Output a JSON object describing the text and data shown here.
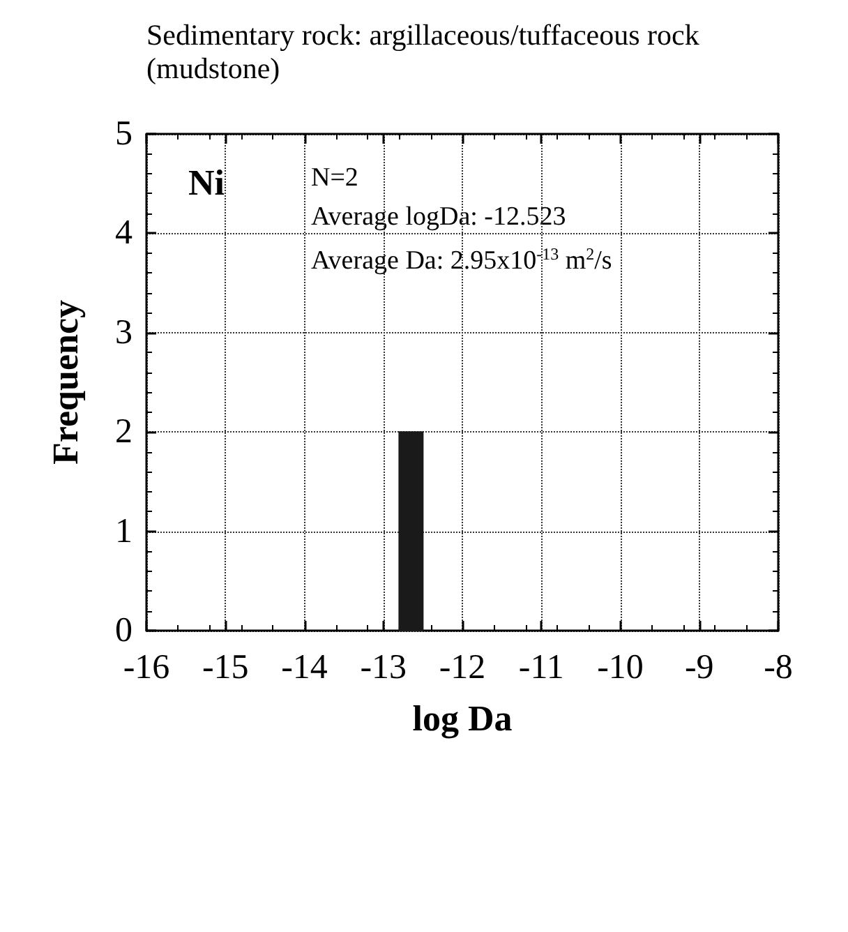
{
  "chart_data": {
    "type": "histogram",
    "title": "Sedimentary rock: argillaceous/tuffaceous rock (mudstone)",
    "xlabel": "log Da",
    "ylabel": "Frequency",
    "bins": [
      -12.8,
      -12.5
    ],
    "values": [
      2
    ],
    "color": "#1a1a1a",
    "xlim": [
      -16,
      -8
    ],
    "xticks": [
      -16,
      -15,
      -14,
      -13,
      -12,
      -11,
      -10,
      -9,
      -8
    ],
    "ylim": [
      0,
      5
    ],
    "yticks": [
      0,
      1,
      2,
      3,
      4,
      5
    ],
    "grid": true,
    "annotations": [
      "Ni",
      "N=2",
      "Average logDa: -12.523",
      "Average Da: 2.95x10$^{-13}$ m$^{2}$/s"
    ]
  }
}
